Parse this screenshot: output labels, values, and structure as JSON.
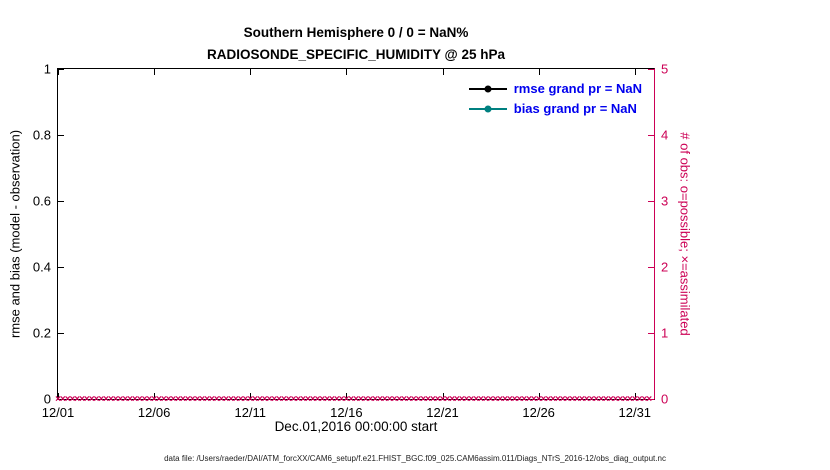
{
  "figure": {
    "title_line1": "Southern Hemisphere 0 / 0 = NaN%",
    "title_line2": "RADIOSONDE_SPECIFIC_HUMIDITY @ 25 hPa",
    "xlabel": "Dec.01,2016 00:00:00 start",
    "footer": "data file: /Users/raeder/DAI/ATM_forcXX/CAM6_setup/f.e21.FHIST_BGC.f09_025.CAM6assim.011/Diags_NTrS_2016-12/obs_diag_output.nc"
  },
  "legend": {
    "text_color": "#0000EE",
    "entries": [
      {
        "label": "rmse grand pr = NaN",
        "color": "#000000"
      },
      {
        "label": "bias grand pr = NaN",
        "color": "#008080"
      }
    ]
  },
  "chart_data": {
    "type": "line",
    "title": "Southern Hemisphere 0 / 0 = NaN% | RADIOSONDE_SPECIFIC_HUMIDITY @ 25 hPa",
    "x_ticks": [
      "12/01",
      "12/06",
      "12/11",
      "12/16",
      "12/21",
      "12/26",
      "12/31"
    ],
    "x_tick_days": [
      0,
      5,
      10,
      15,
      20,
      25,
      30
    ],
    "x_range_days": [
      0,
      31
    ],
    "xlabel": "Dec.01,2016 00:00:00 start",
    "grid": false,
    "left_axis": {
      "label": "rmse and bias (model - observation)",
      "ticks": [
        "0",
        "0.2",
        "0.4",
        "0.6",
        "0.8",
        "1"
      ],
      "tick_values": [
        0,
        0.2,
        0.4,
        0.6,
        0.8,
        1
      ],
      "range": [
        0,
        1
      ],
      "color": "#000000"
    },
    "right_axis": {
      "label": "# of obs: o=possible; ×=assimilated",
      "ticks": [
        "0",
        "1",
        "2",
        "3",
        "4",
        "5"
      ],
      "tick_values": [
        0,
        1,
        2,
        3,
        4,
        5
      ],
      "range": [
        0,
        5
      ],
      "color": "#CC0055"
    },
    "series": [
      {
        "name": "rmse",
        "grand_pr": "NaN",
        "color": "#000000",
        "values": []
      },
      {
        "name": "bias",
        "grand_pr": "NaN",
        "color": "#008080",
        "values": []
      }
    ],
    "obs_markers": {
      "symbol": "×",
      "color": "#CC0055",
      "count": 124,
      "y_value": 0,
      "span_days": [
        0,
        30.75
      ]
    }
  }
}
